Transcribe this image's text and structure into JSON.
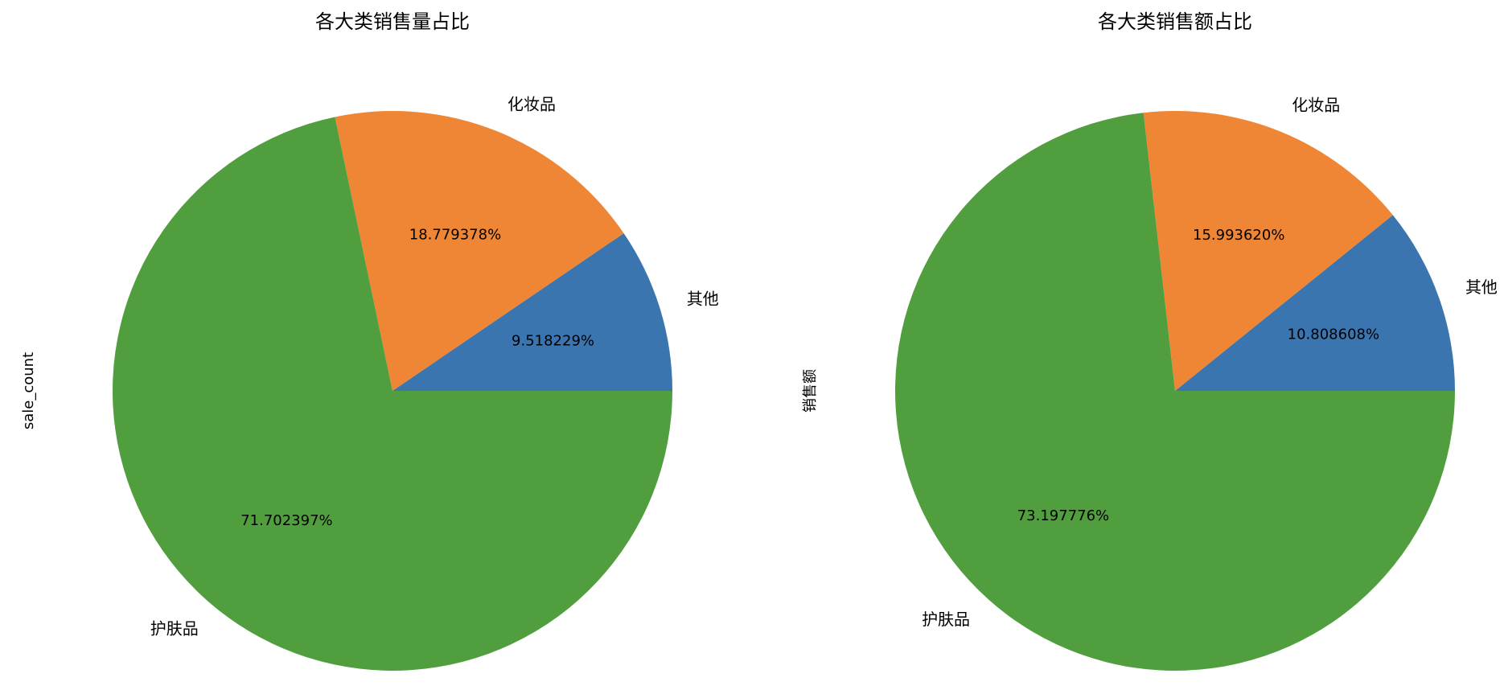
{
  "chart_data": [
    {
      "type": "pie",
      "title": "各大类销售量占比",
      "ylabel": "sale_count",
      "categories": [
        "其他",
        "化妆品",
        "护肤品"
      ],
      "values": [
        9.518229,
        18.779378,
        71.702397
      ],
      "value_labels": [
        "9.518229%",
        "18.779378%",
        "71.702397%"
      ],
      "colors": [
        "#3a75af",
        "#ef8636",
        "#519e3e"
      ]
    },
    {
      "type": "pie",
      "title": "各大类销售额占比",
      "ylabel": "销售额",
      "categories": [
        "其他",
        "化妆品",
        "护肤品"
      ],
      "values": [
        10.808608,
        15.99362,
        73.197776
      ],
      "value_labels": [
        "10.808608%",
        "15.993620%",
        "73.197776%"
      ],
      "colors": [
        "#3a75af",
        "#ef8636",
        "#519e3e"
      ]
    }
  ]
}
